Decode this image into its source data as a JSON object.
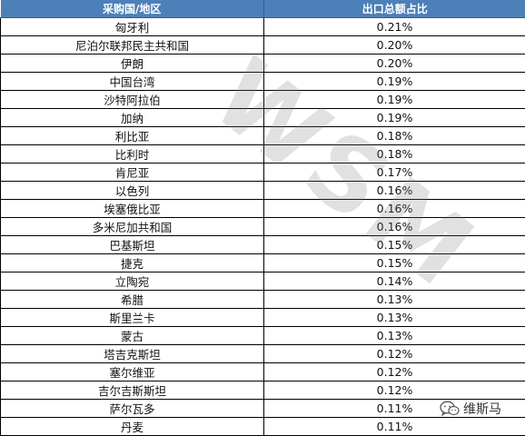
{
  "table": {
    "headers": [
      "采购国/地区",
      "出口总额占比"
    ],
    "rows": [
      [
        "匈牙利",
        "0.21%"
      ],
      [
        "尼泊尔联邦民主共和国",
        "0.20%"
      ],
      [
        "伊朗",
        "0.20%"
      ],
      [
        "中国台湾",
        "0.19%"
      ],
      [
        "沙特阿拉伯",
        "0.19%"
      ],
      [
        "加纳",
        "0.19%"
      ],
      [
        "利比亚",
        "0.18%"
      ],
      [
        "比利时",
        "0.18%"
      ],
      [
        "肯尼亚",
        "0.17%"
      ],
      [
        "以色列",
        "0.16%"
      ],
      [
        "埃塞俄比亚",
        "0.16%"
      ],
      [
        "多米尼加共和国",
        "0.16%"
      ],
      [
        "巴基斯坦",
        "0.15%"
      ],
      [
        "捷克",
        "0.15%"
      ],
      [
        "立陶宛",
        "0.14%"
      ],
      [
        "希腊",
        "0.13%"
      ],
      [
        "斯里兰卡",
        "0.13%"
      ],
      [
        "蒙古",
        "0.13%"
      ],
      [
        "塔吉克斯坦",
        "0.12%"
      ],
      [
        "塞尔维亚",
        "0.12%"
      ],
      [
        "吉尔吉斯斯坦",
        "0.12%"
      ],
      [
        "萨尔瓦多",
        "0.11%"
      ],
      [
        "丹麦",
        "0.11%"
      ]
    ]
  },
  "watermark": {
    "text": "WSM"
  },
  "brand": {
    "name": "维斯马",
    "logo_icon": "wechat-icon",
    "color": "#4d7fb8"
  }
}
